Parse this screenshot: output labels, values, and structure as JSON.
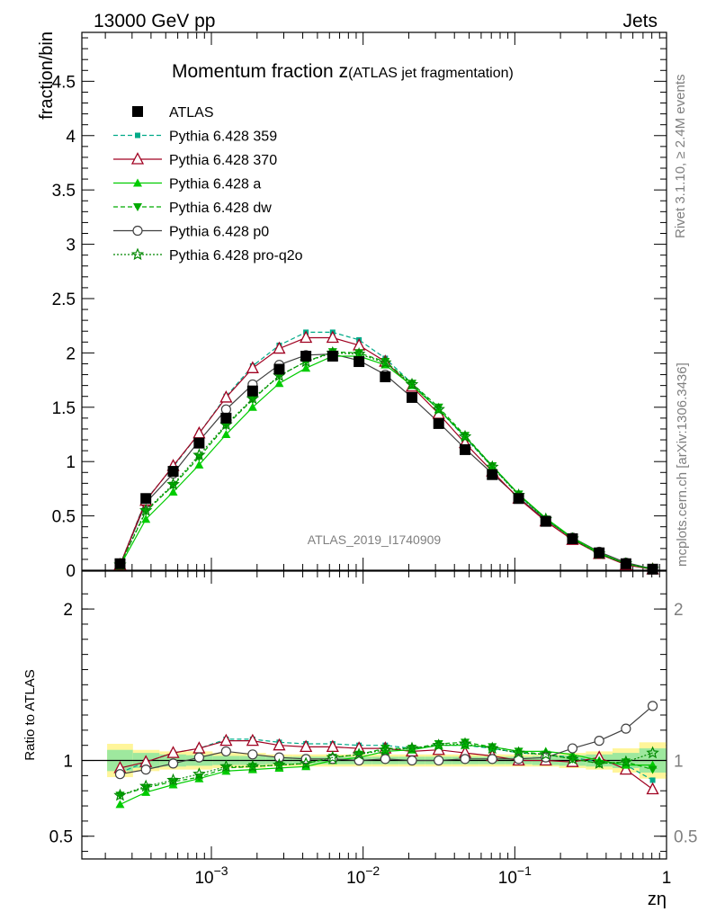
{
  "header": {
    "left": "13000 GeV pp",
    "right": "Jets"
  },
  "side_text": {
    "rivet": "Rivet 3.1.10, ≥ 2.4M events",
    "mcplots": "mcplots.cern.ch [arXiv:1306.3436]"
  },
  "chart_data": [
    {
      "panel": "main",
      "type": "line",
      "title_main": "Momentum fraction z",
      "title_sub": "(ATLAS jet fragmentation)",
      "ylabel": "fraction/bin",
      "watermark": "ATLAS_2019_I1740909",
      "xscale": "log",
      "xlim": [
        0.00014,
        1.0
      ],
      "ylim": [
        0,
        4.95
      ],
      "yticks": [
        0,
        0.5,
        1,
        1.5,
        2,
        2.5,
        3,
        3.5,
        4,
        4.5
      ],
      "ytick_labels": [
        "0",
        "0.5",
        "1",
        "1.5",
        "2",
        "2.5",
        "3",
        "3.5",
        "4",
        "4.5"
      ],
      "legend_position": "top-left",
      "x": [
        0.00025,
        0.00037,
        0.00056,
        0.00083,
        0.00125,
        0.00187,
        0.0028,
        0.0042,
        0.0063,
        0.0094,
        0.014,
        0.021,
        0.0315,
        0.047,
        0.071,
        0.106,
        0.16,
        0.24,
        0.36,
        0.54,
        0.81
      ],
      "series": [
        {
          "name": "ATLAS",
          "color": "#000000",
          "marker": "square",
          "line": "none",
          "values": [
            0.06,
            0.66,
            0.91,
            1.17,
            1.4,
            1.65,
            1.85,
            1.97,
            1.97,
            1.92,
            1.78,
            1.59,
            1.35,
            1.11,
            0.88,
            0.66,
            0.45,
            0.29,
            0.16,
            0.06,
            0.01
          ]
        },
        {
          "name": "Pythia 6.428 359",
          "color": "#00aa88",
          "marker": "smallsquare",
          "line": "dashed",
          "values": [
            0.05,
            0.65,
            0.95,
            1.26,
            1.6,
            1.88,
            2.07,
            2.19,
            2.19,
            2.12,
            1.95,
            1.72,
            1.48,
            1.22,
            0.95,
            0.69,
            0.47,
            0.29,
            0.15,
            0.06,
            0.01
          ]
        },
        {
          "name": "Pythia 6.428 370",
          "color": "#a00020",
          "marker": "triangle-open",
          "line": "solid",
          "values": [
            0.05,
            0.64,
            0.96,
            1.26,
            1.59,
            1.86,
            2.04,
            2.14,
            2.14,
            2.07,
            1.92,
            1.69,
            1.44,
            1.17,
            0.91,
            0.66,
            0.45,
            0.28,
            0.15,
            0.05,
            0.008
          ]
        },
        {
          "name": "Pythia 6.428 a",
          "color": "#00cc00",
          "marker": "triangle",
          "line": "solid",
          "values": [
            0.04,
            0.47,
            0.72,
            0.97,
            1.25,
            1.5,
            1.72,
            1.86,
            1.97,
            1.97,
            1.89,
            1.7,
            1.48,
            1.23,
            0.96,
            0.7,
            0.48,
            0.3,
            0.16,
            0.06,
            0.01
          ]
        },
        {
          "name": "Pythia 6.428 dw",
          "color": "#00aa00",
          "marker": "triangle-down",
          "line": "dashed",
          "values": [
            0.05,
            0.54,
            0.78,
            1.04,
            1.33,
            1.57,
            1.79,
            1.92,
            2.01,
            2.0,
            1.92,
            1.72,
            1.5,
            1.24,
            0.96,
            0.7,
            0.47,
            0.29,
            0.15,
            0.06,
            0.01
          ]
        },
        {
          "name": "Pythia 6.428 p0",
          "color": "#404040",
          "marker": "circle-open",
          "line": "solid",
          "values": [
            0.05,
            0.62,
            0.89,
            1.19,
            1.48,
            1.71,
            1.89,
            1.98,
            1.99,
            1.93,
            1.8,
            1.59,
            1.36,
            1.12,
            0.89,
            0.67,
            0.46,
            0.3,
            0.17,
            0.07,
            0.012
          ]
        },
        {
          "name": "Pythia 6.428 pro-q2o",
          "color": "#008800",
          "marker": "star",
          "line": "dotted",
          "values": [
            0.05,
            0.55,
            0.79,
            1.06,
            1.34,
            1.58,
            1.79,
            1.92,
            2.0,
            1.99,
            1.91,
            1.71,
            1.48,
            1.23,
            0.95,
            0.69,
            0.47,
            0.29,
            0.15,
            0.06,
            0.01
          ]
        }
      ]
    },
    {
      "panel": "ratio",
      "type": "line",
      "ylabel": "Ratio to ATLAS",
      "xlabel": "zη",
      "xscale": "log",
      "xlim": [
        0.00014,
        1.0
      ],
      "ylim": [
        0.35,
        2.25
      ],
      "yticks": [
        0.5,
        1,
        2
      ],
      "ytick_labels": [
        "0.5",
        "1",
        "2"
      ],
      "xticks": [
        0.001,
        0.01,
        0.1,
        1
      ],
      "xtick_labels": [
        "10",
        "10",
        "10",
        "1"
      ],
      "xtick_exponents": [
        "−3",
        "−2",
        "−1",
        ""
      ],
      "band_yellow": [
        0.11,
        0.07,
        0.06,
        0.06,
        0.05,
        0.05,
        0.04,
        0.04,
        0.04,
        0.04,
        0.04,
        0.04,
        0.04,
        0.04,
        0.04,
        0.04,
        0.04,
        0.05,
        0.06,
        0.08,
        0.12
      ],
      "band_green": [
        0.07,
        0.05,
        0.04,
        0.035,
        0.03,
        0.03,
        0.025,
        0.025,
        0.025,
        0.025,
        0.025,
        0.025,
        0.025,
        0.025,
        0.025,
        0.025,
        0.03,
        0.035,
        0.04,
        0.05,
        0.08
      ],
      "series": [
        {
          "name": "Pythia 6.428 359",
          "values": [
            0.92,
            0.99,
            1.05,
            1.08,
            1.14,
            1.14,
            1.12,
            1.11,
            1.11,
            1.1,
            1.1,
            1.08,
            1.1,
            1.1,
            1.08,
            1.05,
            1.04,
            1.02,
            0.99,
            0.97,
            0.87
          ]
        },
        {
          "name": "Pythia 6.428 370",
          "values": [
            0.95,
            0.99,
            1.05,
            1.08,
            1.13,
            1.13,
            1.1,
            1.09,
            1.09,
            1.08,
            1.08,
            1.06,
            1.07,
            1.05,
            1.03,
            1.0,
            1.0,
            0.99,
            1.02,
            0.94,
            0.81
          ]
        },
        {
          "name": "Pythia 6.428 a",
          "values": [
            0.71,
            0.79,
            0.84,
            0.88,
            0.93,
            0.94,
            0.95,
            0.96,
            1.0,
            1.02,
            1.06,
            1.07,
            1.1,
            1.1,
            1.09,
            1.06,
            1.06,
            1.04,
            1.0,
            0.97,
            0.97
          ]
        },
        {
          "name": "Pythia 6.428 dw",
          "values": [
            0.77,
            0.82,
            0.86,
            0.89,
            0.95,
            0.96,
            0.97,
            0.98,
            1.02,
            1.04,
            1.08,
            1.08,
            1.11,
            1.12,
            1.09,
            1.06,
            1.04,
            1.01,
            0.98,
            0.99,
            0.94
          ]
        },
        {
          "name": "Pythia 6.428 p0",
          "values": [
            0.91,
            0.94,
            0.98,
            1.02,
            1.06,
            1.04,
            1.02,
            1.01,
            1.01,
            1.0,
            1.01,
            1.0,
            1.0,
            1.01,
            1.01,
            1.01,
            1.02,
            1.08,
            1.13,
            1.21,
            1.36
          ]
        },
        {
          "name": "Pythia 6.428 pro-q2o",
          "values": [
            0.77,
            0.83,
            0.87,
            0.91,
            0.96,
            0.96,
            0.97,
            0.98,
            1.02,
            1.04,
            1.07,
            1.08,
            1.1,
            1.11,
            1.08,
            1.05,
            1.04,
            1.01,
            0.98,
            0.99,
            1.05
          ]
        }
      ]
    }
  ]
}
